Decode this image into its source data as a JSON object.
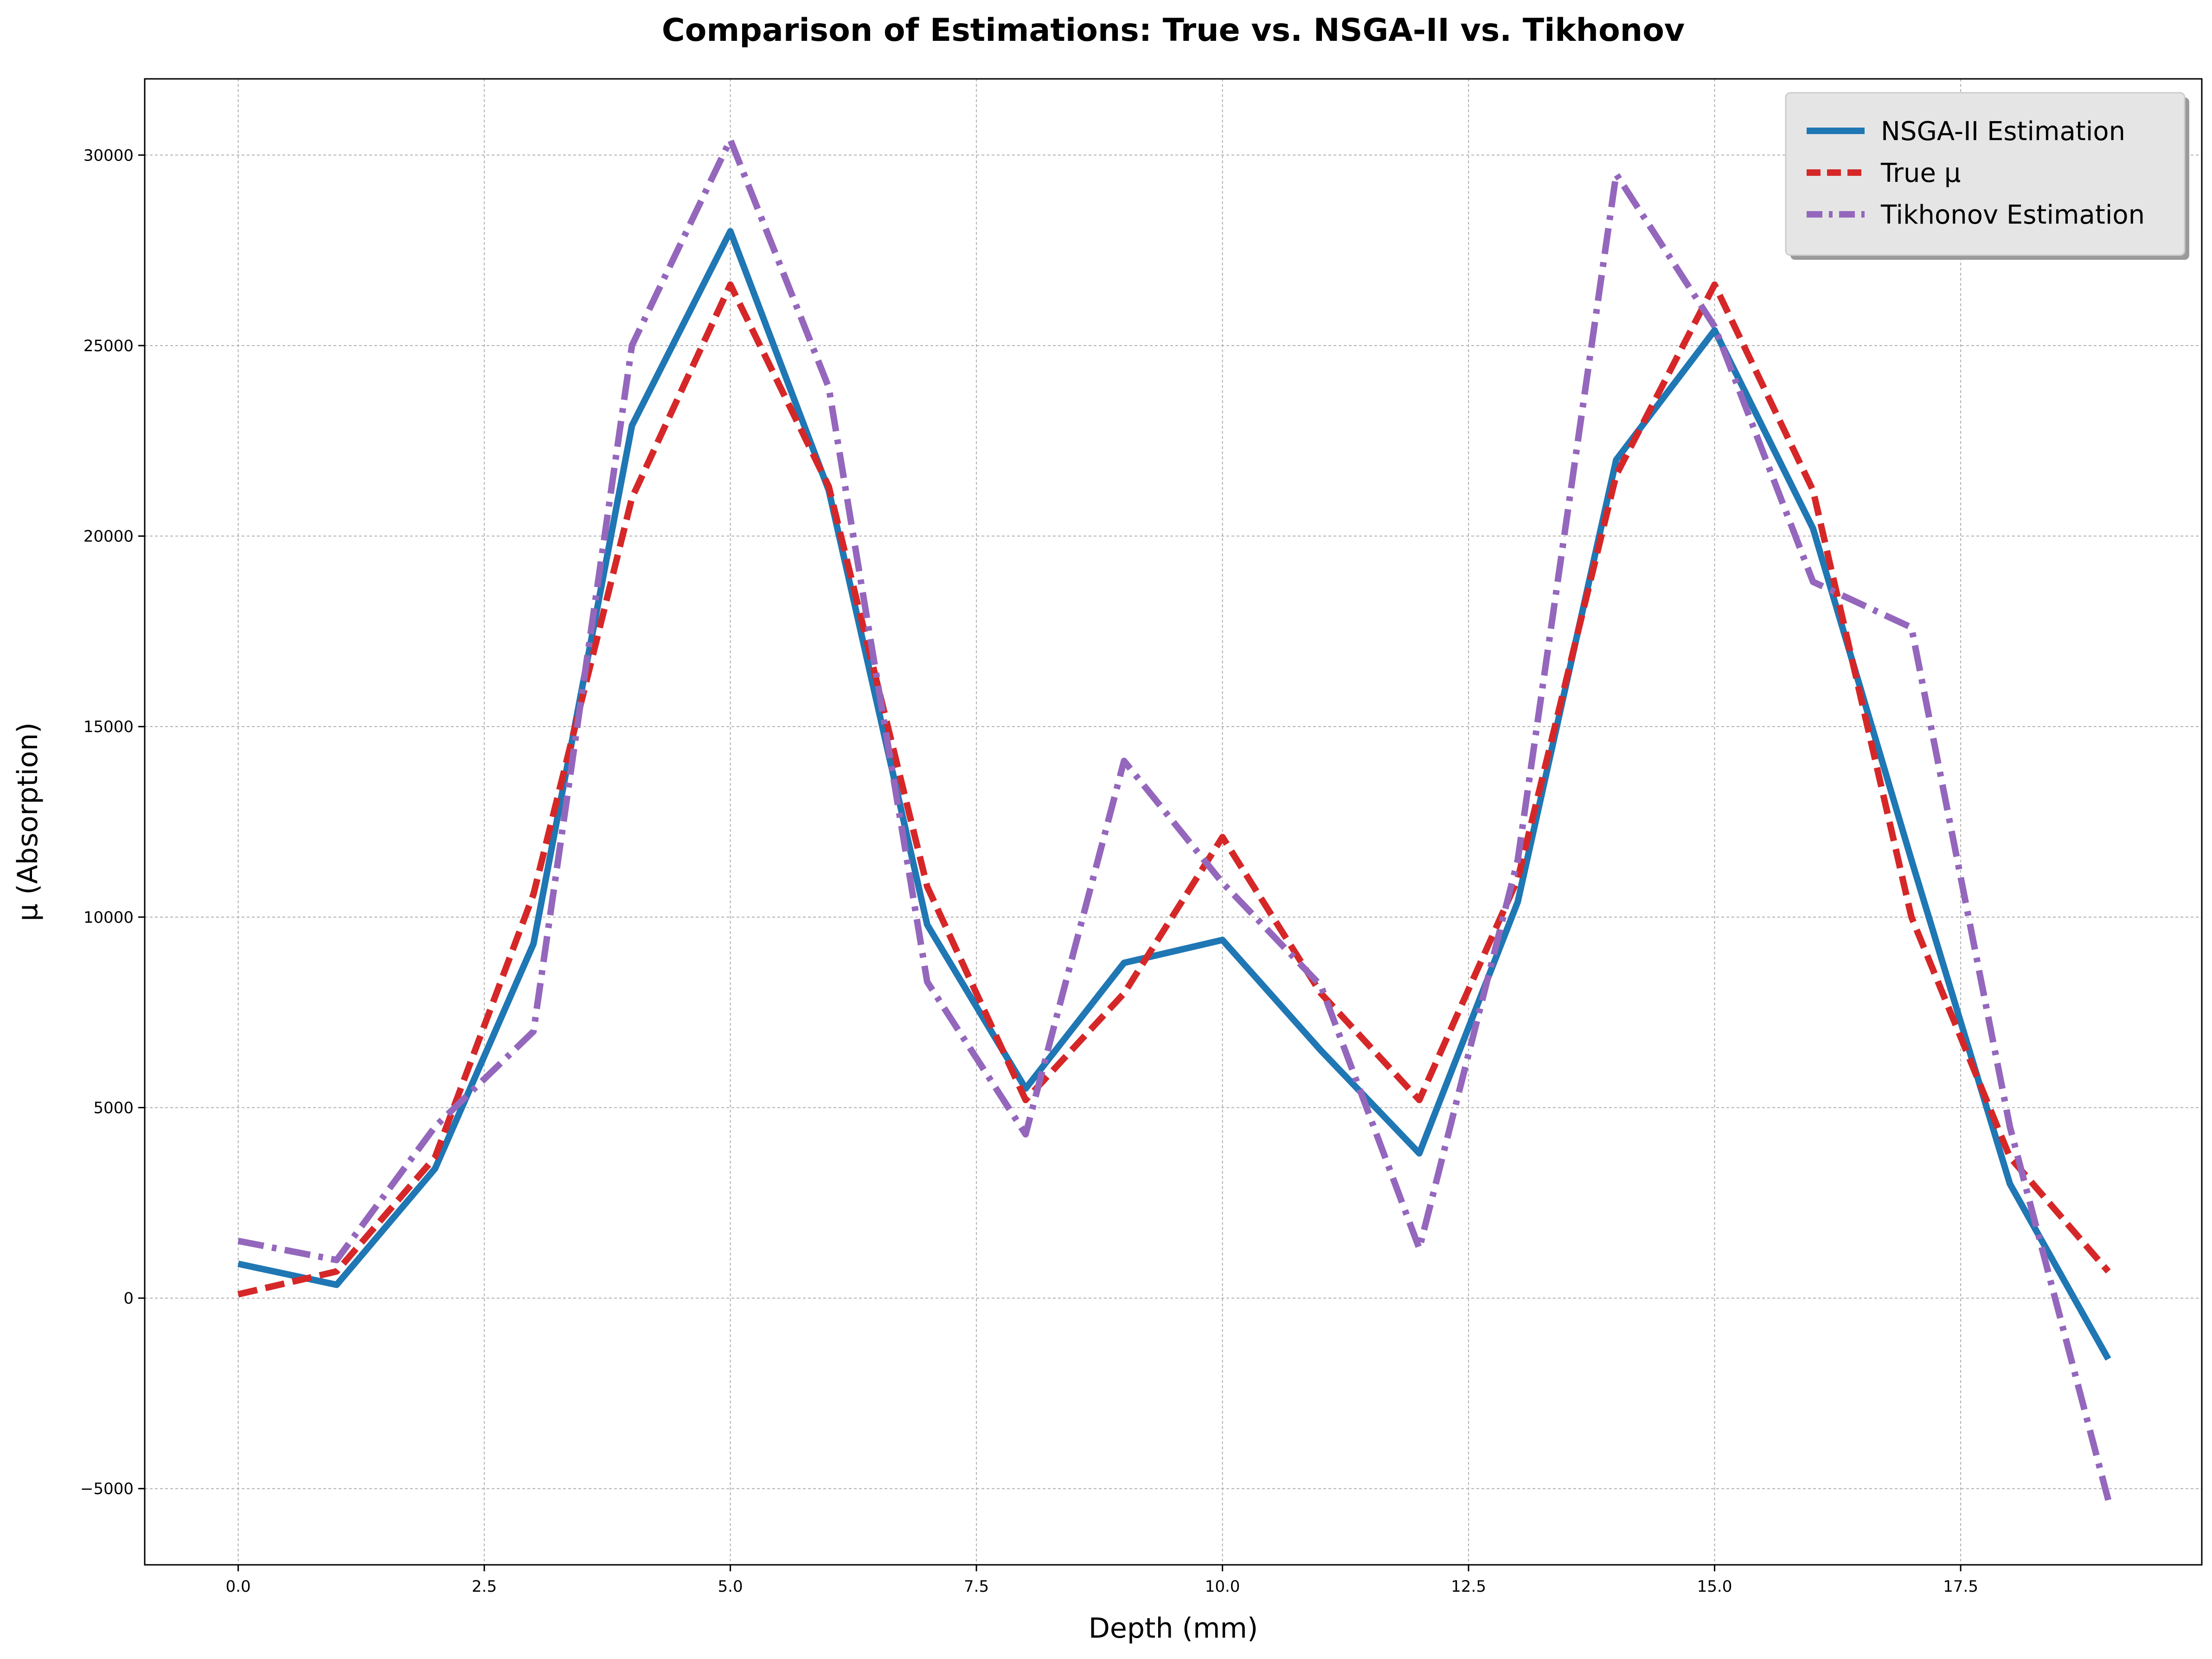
{
  "chart_data": {
    "type": "line",
    "title": "Comparison of Estimations: True vs. NSGA-II vs. Tikhonov",
    "xlabel": "Depth (mm)",
    "ylabel": "μ (Absorption)",
    "xlim": [
      -0.95,
      19.95
    ],
    "ylim": [
      -7000,
      32000
    ],
    "xticks": [
      0.0,
      2.5,
      5.0,
      7.5,
      10.0,
      12.5,
      15.0,
      17.5
    ],
    "xtick_labels": [
      "0.0",
      "2.5",
      "5.0",
      "7.5",
      "10.0",
      "12.5",
      "15.0",
      "17.5"
    ],
    "yticks": [
      -5000,
      0,
      5000,
      10000,
      15000,
      20000,
      25000,
      30000
    ],
    "ytick_labels": [
      "−5000",
      "0",
      "5000",
      "10000",
      "15000",
      "20000",
      "25000",
      "30000"
    ],
    "grid": true,
    "legend_position": "top-right",
    "x": [
      0,
      1,
      2,
      3,
      4,
      5,
      6,
      7,
      8,
      9,
      10,
      11,
      12,
      13,
      14,
      15,
      16,
      17,
      18,
      19
    ],
    "series": [
      {
        "name": "NSGA-II Estimation",
        "color": "#1f77b4",
        "style": "solid",
        "values": [
          900,
          350,
          3400,
          9300,
          22900,
          28000,
          21200,
          9800,
          5500,
          8800,
          9400,
          6500,
          3800,
          10400,
          22000,
          25400,
          20200,
          11500,
          3000,
          -1600
        ]
      },
      {
        "name": "True μ",
        "color": "#d62728",
        "style": "dashed",
        "values": [
          100,
          700,
          3700,
          10600,
          21000,
          26600,
          21300,
          10800,
          5200,
          8000,
          12100,
          8000,
          5200,
          11000,
          21600,
          26600,
          21200,
          10000,
          3700,
          700
        ]
      },
      {
        "name": "Tikhonov Estimation",
        "color": "#9467bd",
        "style": "dashdot",
        "values": [
          1500,
          1000,
          4500,
          7000,
          25000,
          30400,
          23900,
          8300,
          4300,
          14100,
          10900,
          8200,
          1300,
          11500,
          29500,
          25500,
          18800,
          17600,
          4500,
          -5300
        ]
      }
    ]
  }
}
